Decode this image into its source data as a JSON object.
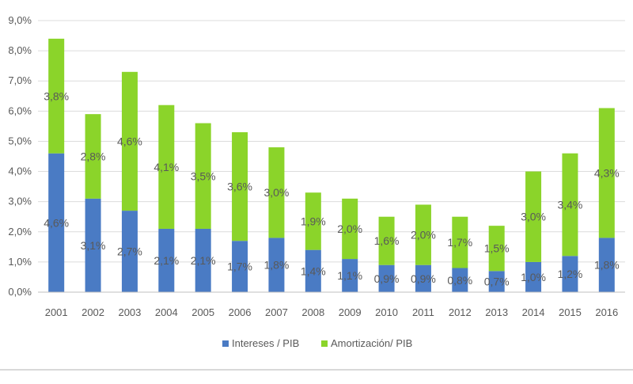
{
  "chart_data": {
    "type": "bar",
    "stacked": true,
    "title": "",
    "xlabel": "",
    "ylabel": "",
    "ylim": [
      0,
      9
    ],
    "yticks": [
      0,
      1,
      2,
      3,
      4,
      5,
      6,
      7,
      8,
      9
    ],
    "ytick_labels": [
      "0,0%",
      "1,0%",
      "2,0%",
      "3,0%",
      "4,0%",
      "5,0%",
      "6,0%",
      "7,0%",
      "8,0%",
      "9,0%"
    ],
    "grid": true,
    "legend_position": "bottom-center",
    "categories": [
      "2001",
      "2002",
      "2003",
      "2004",
      "2005",
      "2006",
      "2007",
      "2008",
      "2009",
      "2010",
      "2011",
      "2012",
      "2013",
      "2014",
      "2015",
      "2016"
    ],
    "series": [
      {
        "name": "Intereses / PIB",
        "color": "#4a7bc4",
        "values": [
          4.6,
          3.1,
          2.7,
          2.1,
          2.1,
          1.7,
          1.8,
          1.4,
          1.1,
          0.9,
          0.9,
          0.8,
          0.7,
          1.0,
          1.2,
          1.8
        ],
        "labels": [
          "4,6%",
          "3,1%",
          "2,7%",
          "2,1%",
          "2,1%",
          "1,7%",
          "1,8%",
          "1,4%",
          "1,1%",
          "0,9%",
          "0,9%",
          "0,8%",
          "0,7%",
          "1,0%",
          "1,2%",
          "1,8%"
        ]
      },
      {
        "name": "Amortización/ PIB",
        "color": "#8bd42a",
        "values": [
          3.8,
          2.8,
          4.6,
          4.1,
          3.5,
          3.6,
          3.0,
          1.9,
          2.0,
          1.6,
          2.0,
          1.7,
          1.5,
          3.0,
          3.4,
          4.3
        ],
        "labels": [
          "3,8%",
          "2,8%",
          "4,6%",
          "4,1%",
          "3,5%",
          "3,6%",
          "3,0%",
          "1,9%",
          "2,0%",
          "1,6%",
          "2,0%",
          "1,7%",
          "1,5%",
          "3,0%",
          "3,4%",
          "4,3%"
        ]
      }
    ]
  },
  "colors": {
    "intereses": "#4a7bc4",
    "amortizacion": "#8bd42a",
    "gridline": "#dcdcdc",
    "axis": "#bfbfbf",
    "text": "#595959"
  }
}
